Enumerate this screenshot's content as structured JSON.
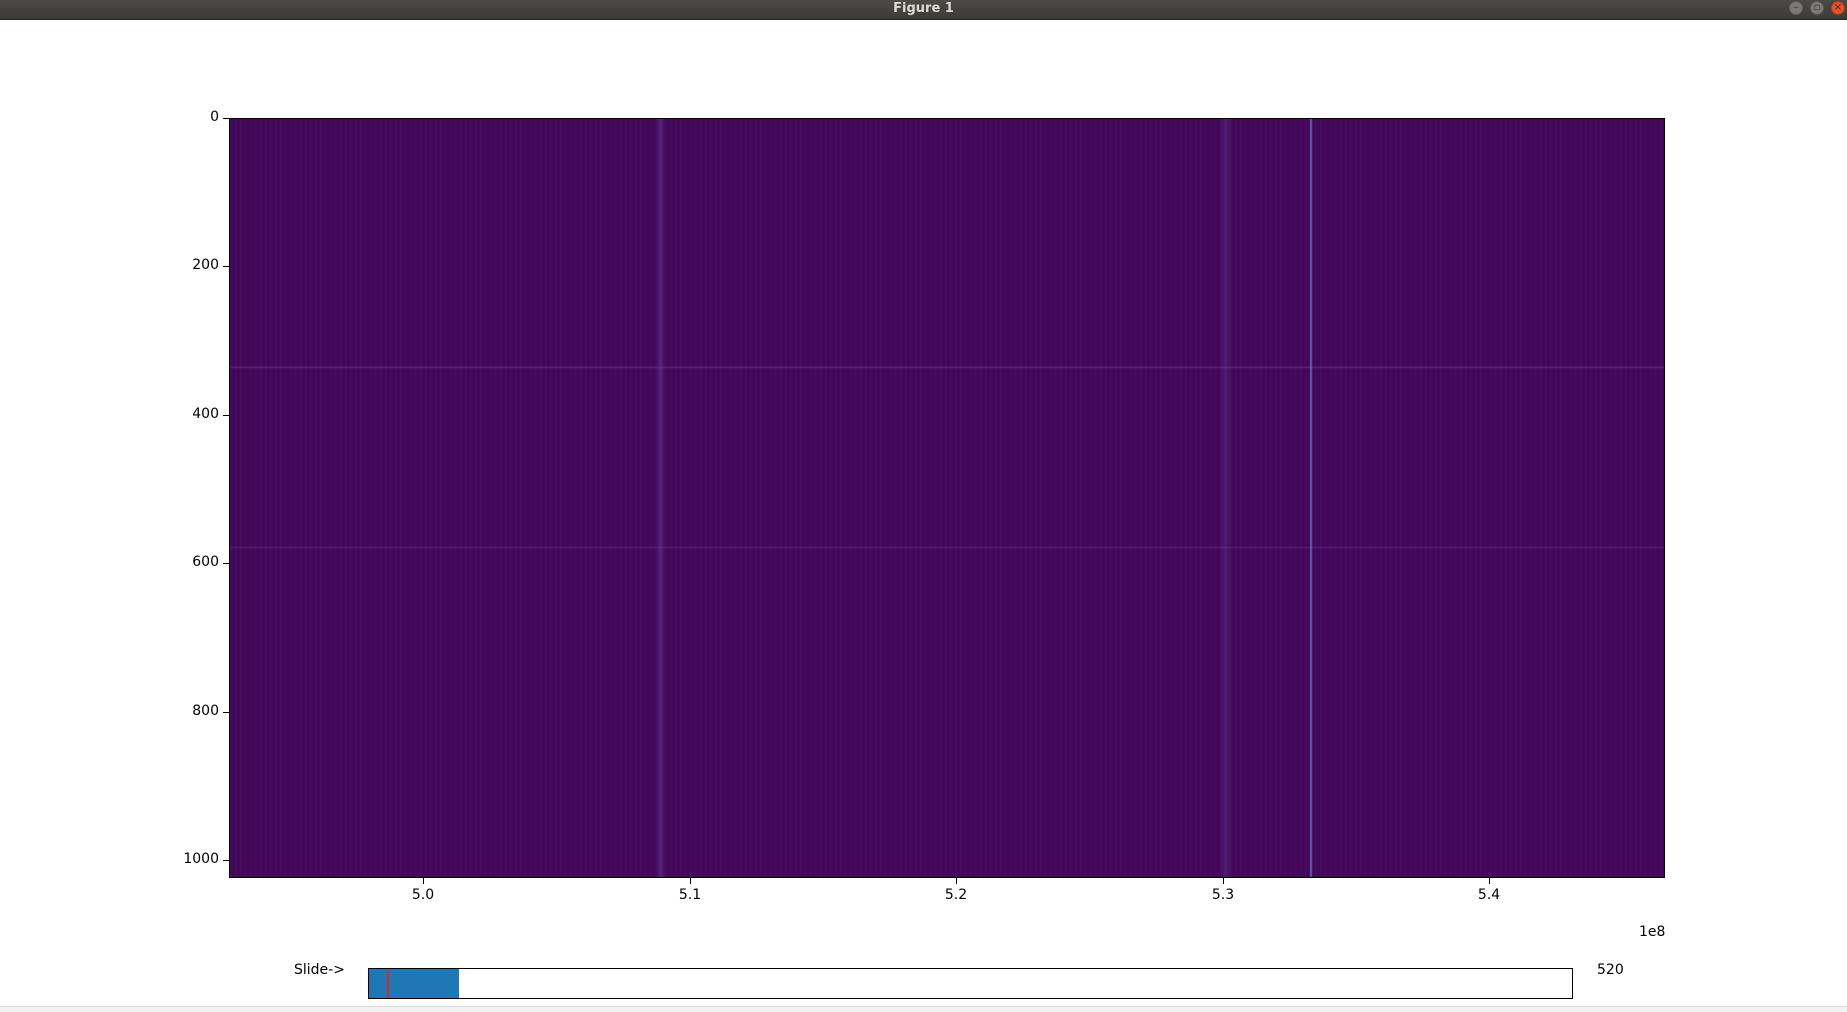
{
  "window": {
    "title": "Figure 1",
    "buttons": {
      "minimize_icon": "minimize-icon",
      "maximize_icon": "maximize-icon",
      "close_icon": "close-icon"
    }
  },
  "colors": {
    "colormap_base": "#43075a",
    "slider_fill": "#1f77b4",
    "slider_init_marker": "#d62728"
  },
  "chart_data": {
    "type": "heatmap",
    "title": "",
    "xlabel": "",
    "ylabel": "",
    "x_offset_label": "1e8",
    "xlim": [
      4.927,
      5.466
    ],
    "ylim": [
      1024,
      0
    ],
    "x_ticks": [
      5.0,
      5.1,
      5.2,
      5.3,
      5.4
    ],
    "x_tick_labels": [
      "5.0",
      "5.1",
      "5.2",
      "5.3",
      "5.4"
    ],
    "y_ticks": [
      0,
      200,
      400,
      600,
      800,
      1000
    ],
    "y_tick_labels": [
      "0",
      "200",
      "400",
      "600",
      "800",
      "1000"
    ],
    "colormap": "viridis",
    "grid": false,
    "features": [
      {
        "kind": "vertical-line",
        "x": 5.335,
        "note": "strong narrow signal"
      },
      {
        "kind": "vertical-band",
        "x": 5.09
      },
      {
        "kind": "vertical-band",
        "x": 5.3
      },
      {
        "kind": "horizontal-line",
        "y": 335
      },
      {
        "kind": "horizontal-line",
        "y": 578
      }
    ]
  },
  "slider": {
    "label": "Slide->",
    "value": 520,
    "value_text": "520",
    "fill_fraction": 0.075,
    "init_marker_fraction": 0.015
  }
}
